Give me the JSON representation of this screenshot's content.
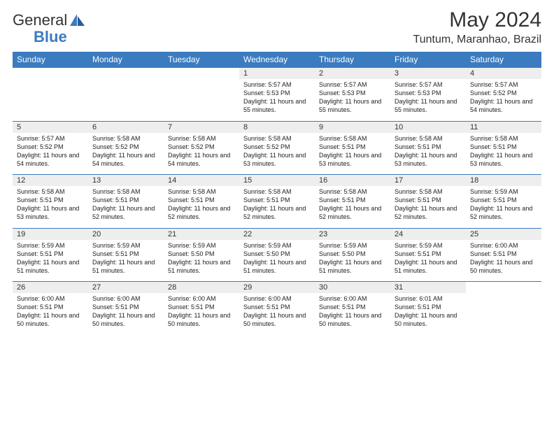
{
  "brand": {
    "part1": "General",
    "part2": "Blue"
  },
  "title": "May 2024",
  "location": "Tuntum, Maranhao, Brazil",
  "colors": {
    "header_bg": "#3b7bbf",
    "header_text": "#ffffff",
    "daynum_bg": "#eeeeee",
    "page_bg": "#ffffff"
  },
  "day_headers": [
    "Sunday",
    "Monday",
    "Tuesday",
    "Wednesday",
    "Thursday",
    "Friday",
    "Saturday"
  ],
  "weeks": [
    [
      null,
      null,
      null,
      {
        "n": "1",
        "sunrise": "5:57 AM",
        "sunset": "5:53 PM",
        "daylight": "11 hours and 55 minutes."
      },
      {
        "n": "2",
        "sunrise": "5:57 AM",
        "sunset": "5:53 PM",
        "daylight": "11 hours and 55 minutes."
      },
      {
        "n": "3",
        "sunrise": "5:57 AM",
        "sunset": "5:53 PM",
        "daylight": "11 hours and 55 minutes."
      },
      {
        "n": "4",
        "sunrise": "5:57 AM",
        "sunset": "5:52 PM",
        "daylight": "11 hours and 54 minutes."
      }
    ],
    [
      {
        "n": "5",
        "sunrise": "5:57 AM",
        "sunset": "5:52 PM",
        "daylight": "11 hours and 54 minutes."
      },
      {
        "n": "6",
        "sunrise": "5:58 AM",
        "sunset": "5:52 PM",
        "daylight": "11 hours and 54 minutes."
      },
      {
        "n": "7",
        "sunrise": "5:58 AM",
        "sunset": "5:52 PM",
        "daylight": "11 hours and 54 minutes."
      },
      {
        "n": "8",
        "sunrise": "5:58 AM",
        "sunset": "5:52 PM",
        "daylight": "11 hours and 53 minutes."
      },
      {
        "n": "9",
        "sunrise": "5:58 AM",
        "sunset": "5:51 PM",
        "daylight": "11 hours and 53 minutes."
      },
      {
        "n": "10",
        "sunrise": "5:58 AM",
        "sunset": "5:51 PM",
        "daylight": "11 hours and 53 minutes."
      },
      {
        "n": "11",
        "sunrise": "5:58 AM",
        "sunset": "5:51 PM",
        "daylight": "11 hours and 53 minutes."
      }
    ],
    [
      {
        "n": "12",
        "sunrise": "5:58 AM",
        "sunset": "5:51 PM",
        "daylight": "11 hours and 53 minutes."
      },
      {
        "n": "13",
        "sunrise": "5:58 AM",
        "sunset": "5:51 PM",
        "daylight": "11 hours and 52 minutes."
      },
      {
        "n": "14",
        "sunrise": "5:58 AM",
        "sunset": "5:51 PM",
        "daylight": "11 hours and 52 minutes."
      },
      {
        "n": "15",
        "sunrise": "5:58 AM",
        "sunset": "5:51 PM",
        "daylight": "11 hours and 52 minutes."
      },
      {
        "n": "16",
        "sunrise": "5:58 AM",
        "sunset": "5:51 PM",
        "daylight": "11 hours and 52 minutes."
      },
      {
        "n": "17",
        "sunrise": "5:58 AM",
        "sunset": "5:51 PM",
        "daylight": "11 hours and 52 minutes."
      },
      {
        "n": "18",
        "sunrise": "5:59 AM",
        "sunset": "5:51 PM",
        "daylight": "11 hours and 52 minutes."
      }
    ],
    [
      {
        "n": "19",
        "sunrise": "5:59 AM",
        "sunset": "5:51 PM",
        "daylight": "11 hours and 51 minutes."
      },
      {
        "n": "20",
        "sunrise": "5:59 AM",
        "sunset": "5:51 PM",
        "daylight": "11 hours and 51 minutes."
      },
      {
        "n": "21",
        "sunrise": "5:59 AM",
        "sunset": "5:50 PM",
        "daylight": "11 hours and 51 minutes."
      },
      {
        "n": "22",
        "sunrise": "5:59 AM",
        "sunset": "5:50 PM",
        "daylight": "11 hours and 51 minutes."
      },
      {
        "n": "23",
        "sunrise": "5:59 AM",
        "sunset": "5:50 PM",
        "daylight": "11 hours and 51 minutes."
      },
      {
        "n": "24",
        "sunrise": "5:59 AM",
        "sunset": "5:51 PM",
        "daylight": "11 hours and 51 minutes."
      },
      {
        "n": "25",
        "sunrise": "6:00 AM",
        "sunset": "5:51 PM",
        "daylight": "11 hours and 50 minutes."
      }
    ],
    [
      {
        "n": "26",
        "sunrise": "6:00 AM",
        "sunset": "5:51 PM",
        "daylight": "11 hours and 50 minutes."
      },
      {
        "n": "27",
        "sunrise": "6:00 AM",
        "sunset": "5:51 PM",
        "daylight": "11 hours and 50 minutes."
      },
      {
        "n": "28",
        "sunrise": "6:00 AM",
        "sunset": "5:51 PM",
        "daylight": "11 hours and 50 minutes."
      },
      {
        "n": "29",
        "sunrise": "6:00 AM",
        "sunset": "5:51 PM",
        "daylight": "11 hours and 50 minutes."
      },
      {
        "n": "30",
        "sunrise": "6:00 AM",
        "sunset": "5:51 PM",
        "daylight": "11 hours and 50 minutes."
      },
      {
        "n": "31",
        "sunrise": "6:01 AM",
        "sunset": "5:51 PM",
        "daylight": "11 hours and 50 minutes."
      },
      null
    ]
  ],
  "labels": {
    "sunrise": "Sunrise:",
    "sunset": "Sunset:",
    "daylight": "Daylight:"
  }
}
